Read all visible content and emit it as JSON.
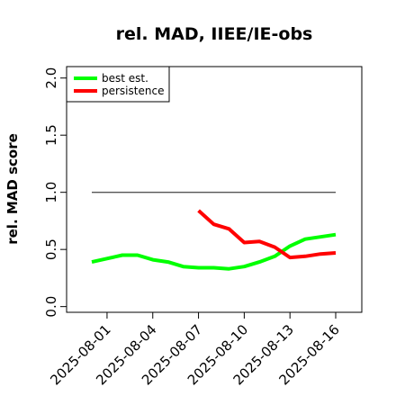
{
  "chart_data": {
    "type": "line",
    "title": "rel. MAD, IIEE/IE-obs",
    "xlabel": "",
    "ylabel": "rel. MAD score",
    "ylim": [
      -0.05,
      2.1
    ],
    "yticks": [
      "0.0",
      "0.5",
      "1.0",
      "1.5",
      "2.0"
    ],
    "xticks": [
      "2025-08-01",
      "2025-08-04",
      "2025-08-07",
      "2025-08-10",
      "2025-08-13",
      "2025-08-16"
    ],
    "x": [
      "2025-07-31",
      "2025-08-01",
      "2025-08-02",
      "2025-08-03",
      "2025-08-04",
      "2025-08-05",
      "2025-08-06",
      "2025-08-07",
      "2025-08-08",
      "2025-08-09",
      "2025-08-10",
      "2025-08-11",
      "2025-08-12",
      "2025-08-13",
      "2025-08-14",
      "2025-08-15",
      "2025-08-16"
    ],
    "reference_line": 1.0,
    "legend_position": "top-left",
    "series": [
      {
        "name": "best est.",
        "color": "#00ff00",
        "values": [
          0.39,
          0.42,
          0.45,
          0.45,
          0.41,
          0.39,
          0.35,
          0.34,
          0.34,
          0.33,
          0.35,
          0.39,
          0.44,
          0.53,
          0.59,
          0.61,
          0.63
        ]
      },
      {
        "name": "persistence",
        "color": "#ff0000",
        "values": [
          null,
          null,
          null,
          null,
          null,
          null,
          null,
          0.84,
          0.72,
          0.68,
          0.56,
          0.57,
          0.52,
          0.43,
          0.44,
          0.46,
          0.47
        ]
      }
    ]
  }
}
